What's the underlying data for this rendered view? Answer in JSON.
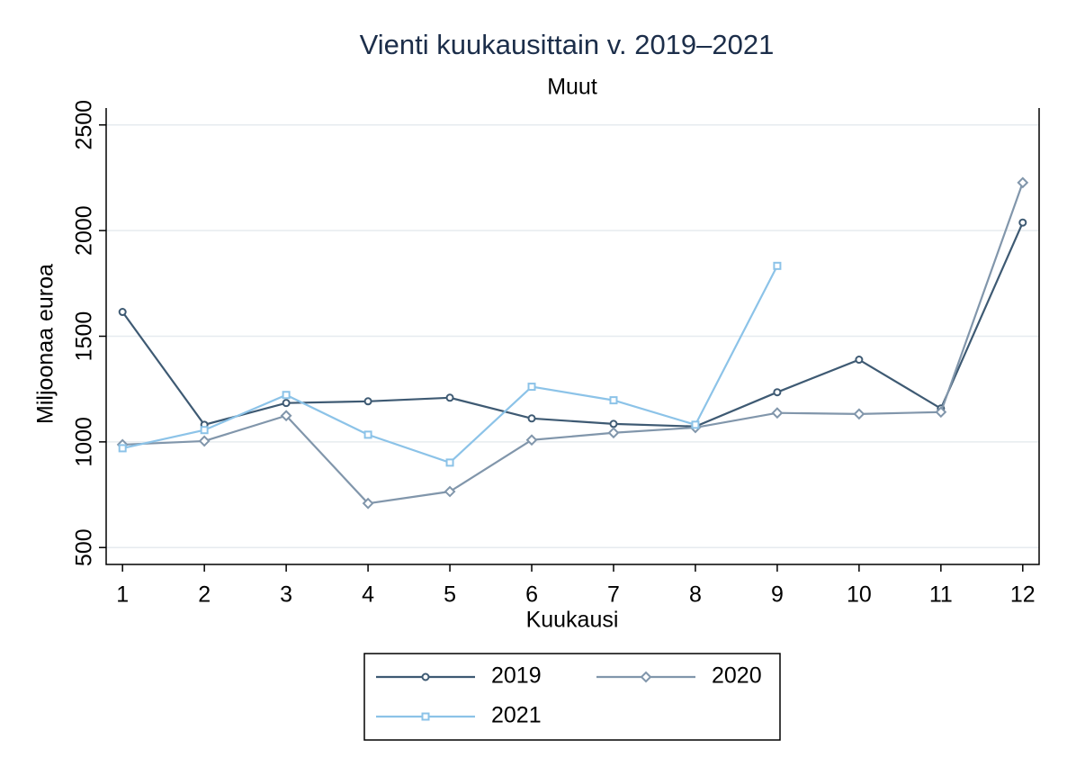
{
  "chart_data": {
    "type": "line",
    "title": "Vienti kuukausittain v. 2019–2021",
    "subtitle": "Muut",
    "x_label": "Kuukausi",
    "y_label": "Miljoonaa euroa",
    "x": [
      1,
      2,
      3,
      4,
      5,
      6,
      7,
      8,
      9,
      10,
      11,
      12
    ],
    "series": [
      {
        "name": "2019",
        "color": "#3e5a73",
        "marker": "circle",
        "values": [
          1615,
          1081,
          1184,
          1192,
          1209,
          1111,
          1085,
          1073,
          1235,
          1389,
          1158,
          2038
        ]
      },
      {
        "name": "2020",
        "color": "#8196ab",
        "marker": "diamond",
        "values": [
          987,
          1004,
          1124,
          709,
          765,
          1009,
          1043,
          1068,
          1137,
          1132,
          1141,
          2227
        ]
      },
      {
        "name": "2021",
        "color": "#8cc3e8",
        "marker": "square",
        "values": [
          970,
          1056,
          1222,
          1034,
          902,
          1261,
          1197,
          1081,
          1833,
          null,
          null,
          null
        ]
      }
    ],
    "xlim": [
      0.8,
      12.2
    ],
    "xticks": [
      1,
      2,
      3,
      4,
      5,
      6,
      7,
      8,
      9,
      10,
      11,
      12
    ],
    "ylim": [
      420,
      2580
    ],
    "yticks": [
      500,
      1000,
      1500,
      2000,
      2500
    ],
    "grid": true
  }
}
